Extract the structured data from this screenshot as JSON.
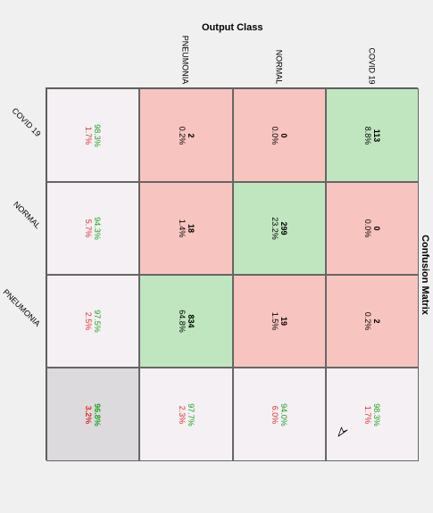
{
  "chart_data": {
    "type": "heatmap",
    "title": "Confusion Matrix",
    "xlabel": "Output Class",
    "classes": [
      "COVID 19",
      "NORMAL",
      "PNEUMONIA"
    ],
    "counts": [
      [
        113,
        0,
        2
      ],
      [
        0,
        299,
        18
      ],
      [
        2,
        19,
        834
      ]
    ],
    "percents": [
      [
        "8.8%",
        "0.0%",
        "0.2%"
      ],
      [
        "0.0%",
        "23.2%",
        "1.4%"
      ],
      [
        "0.2%",
        "1.5%",
        "64.8%"
      ]
    ],
    "class_summary": [
      {
        "good": "98.3%",
        "bad": "1.7%"
      },
      {
        "good": "94.3%",
        "bad": "5.7%"
      },
      {
        "good": "97.5%",
        "bad": "2.5%"
      }
    ],
    "output_summary": [
      {
        "good": "98.3%",
        "bad": "1.7%"
      },
      {
        "good": "94.0%",
        "bad": "6.0%"
      },
      {
        "good": "97.7%",
        "bad": "2.3%"
      }
    ],
    "overall": {
      "good": "96.8%",
      "bad": "3.2%"
    },
    "colors": {
      "correct": "#c0e6c0",
      "incorrect": "#f8c4c0",
      "summary": "#f4f0f4",
      "overall": "#dcdadc",
      "good_text": "#1aa61a",
      "bad_text": "#e03030"
    }
  }
}
